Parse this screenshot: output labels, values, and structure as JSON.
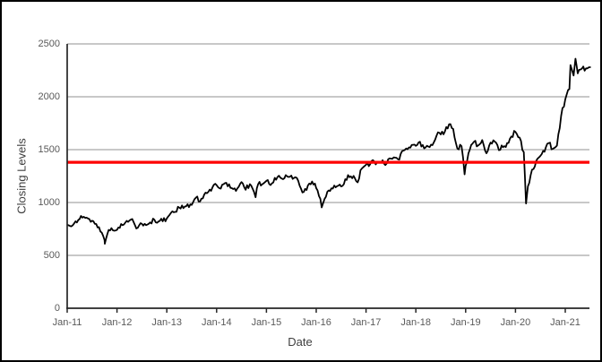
{
  "figure": {
    "background": "#FFFFFF",
    "border_color": "#000000"
  },
  "chart_data": {
    "type": "line",
    "title": "",
    "xlabel": "Date",
    "ylabel": "Closing Levels",
    "x_tick_labels": [
      "Jan-11",
      "Jan-12",
      "Jan-13",
      "Jan-14",
      "Jan-15",
      "Jan-16",
      "Jan-17",
      "Jan-18",
      "Jan-19",
      "Jan-20",
      "Jan-21"
    ],
    "y_ticks": [
      0,
      500,
      1000,
      1500,
      2000,
      2500
    ],
    "ylim": [
      0,
      2500
    ],
    "grid": "horizontal",
    "gridline_color": "#909090",
    "axis_color": "#262626",
    "tick_label_color": "#595959",
    "legend": "none",
    "series": [
      {
        "name": "closing-levels",
        "color": "#000000",
        "points": [
          [
            "2011-01-03",
            789
          ],
          [
            "2011-01",
            775
          ],
          [
            "2011-02",
            822
          ],
          [
            "2011-03",
            844
          ],
          [
            "2011-04",
            865
          ],
          [
            "2011-05",
            849
          ],
          [
            "2011-06",
            828
          ],
          [
            "2011-07",
            797
          ],
          [
            "2011-08",
            725
          ],
          [
            "2011-09",
            644
          ],
          [
            "2011-10-03",
            609
          ],
          [
            "2011-10",
            741
          ],
          [
            "2011-11",
            737
          ],
          [
            "2011-12",
            741
          ],
          [
            "2012-01",
            797
          ],
          [
            "2012-02",
            810
          ],
          [
            "2012-03",
            830
          ],
          [
            "2012-04",
            816
          ],
          [
            "2012-05",
            761
          ],
          [
            "2012-06",
            798
          ],
          [
            "2012-07",
            786
          ],
          [
            "2012-08",
            812
          ],
          [
            "2012-09",
            837
          ],
          [
            "2012-10",
            820
          ],
          [
            "2012-11",
            822
          ],
          [
            "2012-12",
            849
          ],
          [
            "2013-01",
            902
          ],
          [
            "2013-02",
            911
          ],
          [
            "2013-03",
            951
          ],
          [
            "2013-04",
            947
          ],
          [
            "2013-05",
            984
          ],
          [
            "2013-06",
            977
          ],
          [
            "2013-07",
            1045
          ],
          [
            "2013-08",
            1010
          ],
          [
            "2013-09",
            1074
          ],
          [
            "2013-10",
            1100
          ],
          [
            "2013-11",
            1143
          ],
          [
            "2013-12",
            1164
          ],
          [
            "2014-01",
            1131
          ],
          [
            "2014-02",
            1183
          ],
          [
            "2014-03",
            1173
          ],
          [
            "2014-04",
            1127
          ],
          [
            "2014-05",
            1134
          ],
          [
            "2014-06",
            1193
          ],
          [
            "2014-07",
            1120
          ],
          [
            "2014-08",
            1174
          ],
          [
            "2014-09",
            1102
          ],
          [
            "2014-10-13",
            1050
          ],
          [
            "2014-10",
            1173
          ],
          [
            "2014-11",
            1173
          ],
          [
            "2014-12",
            1205
          ],
          [
            "2015-01",
            1165
          ],
          [
            "2015-02",
            1233
          ],
          [
            "2015-03",
            1253
          ],
          [
            "2015-04",
            1220
          ],
          [
            "2015-05",
            1247
          ],
          [
            "2015-06",
            1254
          ],
          [
            "2015-07",
            1239
          ],
          [
            "2015-08",
            1159
          ],
          [
            "2015-09",
            1100
          ],
          [
            "2015-10",
            1161
          ],
          [
            "2015-11",
            1198
          ],
          [
            "2015-12",
            1136
          ],
          [
            "2016-01",
            1035
          ],
          [
            "2016-02-11",
            953
          ],
          [
            "2016-02",
            1034
          ],
          [
            "2016-03",
            1114
          ],
          [
            "2016-04",
            1131
          ],
          [
            "2016-05",
            1154
          ],
          [
            "2016-06",
            1152
          ],
          [
            "2016-07",
            1220
          ],
          [
            "2016-08",
            1240
          ],
          [
            "2016-09",
            1252
          ],
          [
            "2016-10",
            1191
          ],
          [
            "2016-11",
            1322
          ],
          [
            "2016-12",
            1357
          ],
          [
            "2017-01",
            1362
          ],
          [
            "2017-02",
            1387
          ],
          [
            "2017-03",
            1386
          ],
          [
            "2017-04",
            1400
          ],
          [
            "2017-05",
            1370
          ],
          [
            "2017-06",
            1415
          ],
          [
            "2017-07",
            1425
          ],
          [
            "2017-08",
            1405
          ],
          [
            "2017-09",
            1491
          ],
          [
            "2017-10",
            1503
          ],
          [
            "2017-11",
            1544
          ],
          [
            "2017-12",
            1536
          ],
          [
            "2018-01",
            1575
          ],
          [
            "2018-02",
            1512
          ],
          [
            "2018-03",
            1529
          ],
          [
            "2018-04",
            1542
          ],
          [
            "2018-05",
            1634
          ],
          [
            "2018-06",
            1643
          ],
          [
            "2018-07",
            1671
          ],
          [
            "2018-08",
            1740
          ],
          [
            "2018-09",
            1696
          ],
          [
            "2018-10",
            1511
          ],
          [
            "2018-11",
            1533
          ],
          [
            "2018-12-24",
            1266
          ],
          [
            "2018-12",
            1349
          ],
          [
            "2019-01",
            1499
          ],
          [
            "2019-02",
            1575
          ],
          [
            "2019-03",
            1539
          ],
          [
            "2019-04",
            1591
          ],
          [
            "2019-05",
            1465
          ],
          [
            "2019-06",
            1567
          ],
          [
            "2019-07",
            1577
          ],
          [
            "2019-08",
            1495
          ],
          [
            "2019-09",
            1523
          ],
          [
            "2019-10",
            1562
          ],
          [
            "2019-11",
            1625
          ],
          [
            "2019-12",
            1668
          ],
          [
            "2020-01",
            1614
          ],
          [
            "2020-02",
            1476
          ],
          [
            "2020-03-18",
            991
          ],
          [
            "2020-03",
            1153
          ],
          [
            "2020-04",
            1311
          ],
          [
            "2020-05",
            1394
          ],
          [
            "2020-06",
            1441
          ],
          [
            "2020-07",
            1480
          ],
          [
            "2020-08",
            1562
          ],
          [
            "2020-09",
            1508
          ],
          [
            "2020-10",
            1538
          ],
          [
            "2020-11",
            1820
          ],
          [
            "2020-12",
            1975
          ],
          [
            "2021-01",
            2073
          ],
          [
            "2021-02-09",
            2299
          ],
          [
            "2021-02",
            2201
          ],
          [
            "2021-03-15",
            2360
          ],
          [
            "2021-03",
            2221
          ],
          [
            "2021-04",
            2266
          ],
          [
            "2021-05",
            2269
          ],
          [
            "2021-06",
            2280
          ]
        ]
      }
    ],
    "reference_line": {
      "name": "horizontal-reference-line",
      "value": 1380,
      "color": "#FE0000"
    }
  }
}
